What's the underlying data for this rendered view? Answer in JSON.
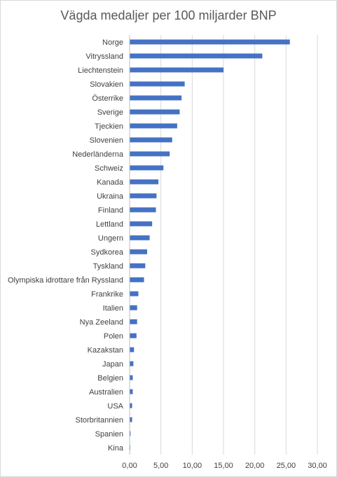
{
  "chart_data": {
    "type": "bar",
    "orientation": "horizontal",
    "title": "Vägda medaljer per 100 miljarder BNP",
    "categories": [
      "Norge",
      "Vitryssland",
      "Liechtenstein",
      "Slovakien",
      "Österrike",
      "Sverige",
      "Tjeckien",
      "Slovenien",
      "Nederländerna",
      "Schweiz",
      "Kanada",
      "Ukraina",
      "Finland",
      "Lettland",
      "Ungern",
      "Sydkorea",
      "Tyskland",
      "Olympiska idrottare från Ryssland",
      "Frankrike",
      "Italien",
      "Nya Zeeland",
      "Polen",
      "Kazakstan",
      "Japan",
      "Belgien",
      "Australien",
      "USA",
      "Storbritannien",
      "Spanien",
      "Kina"
    ],
    "values": [
      25.6,
      21.2,
      15.0,
      8.8,
      8.3,
      8.0,
      7.6,
      6.8,
      6.4,
      5.4,
      4.6,
      4.3,
      4.2,
      3.6,
      3.2,
      2.8,
      2.5,
      2.3,
      1.4,
      1.2,
      1.2,
      1.1,
      0.7,
      0.6,
      0.5,
      0.5,
      0.4,
      0.4,
      0.15,
      0.1
    ],
    "xticks": [
      "0,00",
      "5,00",
      "10,00",
      "15,00",
      "20,00",
      "25,00",
      "30,00"
    ],
    "xlim": [
      0,
      30
    ],
    "grid": true,
    "color": "#4472c4"
  }
}
